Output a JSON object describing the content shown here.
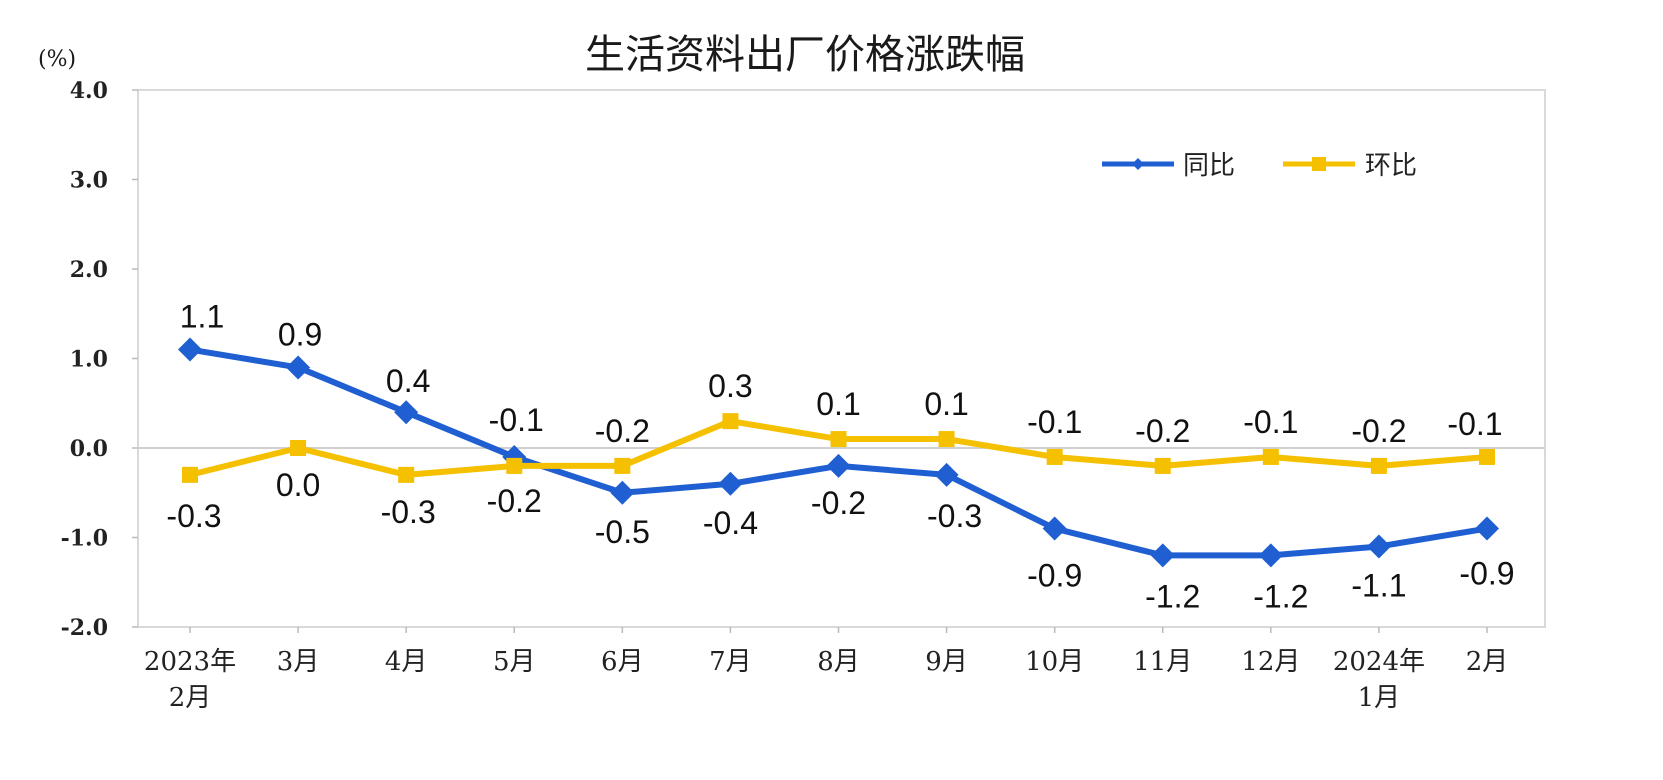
{
  "chart_data": {
    "type": "line",
    "title": "生活资料出厂价格涨跌幅",
    "unit": "(%)",
    "categories": [
      [
        "2023年",
        "2月"
      ],
      [
        "3月"
      ],
      [
        "4月"
      ],
      [
        "5月"
      ],
      [
        "6月"
      ],
      [
        "7月"
      ],
      [
        "8月"
      ],
      [
        "9月"
      ],
      [
        "10月"
      ],
      [
        "11月"
      ],
      [
        "12月"
      ],
      [
        "2024年",
        "1月"
      ],
      [
        "2月"
      ]
    ],
    "ylim": [
      -2.0,
      4.0
    ],
    "yticks": [
      "4.0",
      "3.0",
      "2.0",
      "1.0",
      "0.0",
      "-1.0",
      "-2.0"
    ],
    "grid": false,
    "legend_position": "top-right",
    "series": [
      {
        "name": "同比",
        "color": "#1f5fd1",
        "marker": "diamond",
        "values": [
          1.1,
          0.9,
          0.4,
          -0.1,
          -0.5,
          -0.4,
          -0.2,
          -0.3,
          -0.9,
          -1.2,
          -1.2,
          -1.1,
          -0.9
        ],
        "labels": [
          "1.1",
          "0.9",
          "0.4",
          "-0.1",
          "-0.5",
          "-0.4",
          "-0.2",
          "-0.3",
          "-0.9",
          "-1.2",
          "-1.2",
          "-1.1",
          "-0.9"
        ]
      },
      {
        "name": "环比",
        "color": "#f5c000",
        "marker": "square",
        "values": [
          -0.3,
          0.0,
          -0.3,
          -0.2,
          -0.2,
          0.3,
          0.1,
          0.1,
          -0.1,
          -0.2,
          -0.1,
          -0.2,
          -0.1
        ],
        "labels": [
          "-0.3",
          "0.0",
          "-0.3",
          "-0.2",
          "-0.2",
          "0.3",
          "0.1",
          "0.1",
          "-0.1",
          "-0.2",
          "-0.1",
          "-0.2",
          "-0.1"
        ]
      }
    ]
  }
}
